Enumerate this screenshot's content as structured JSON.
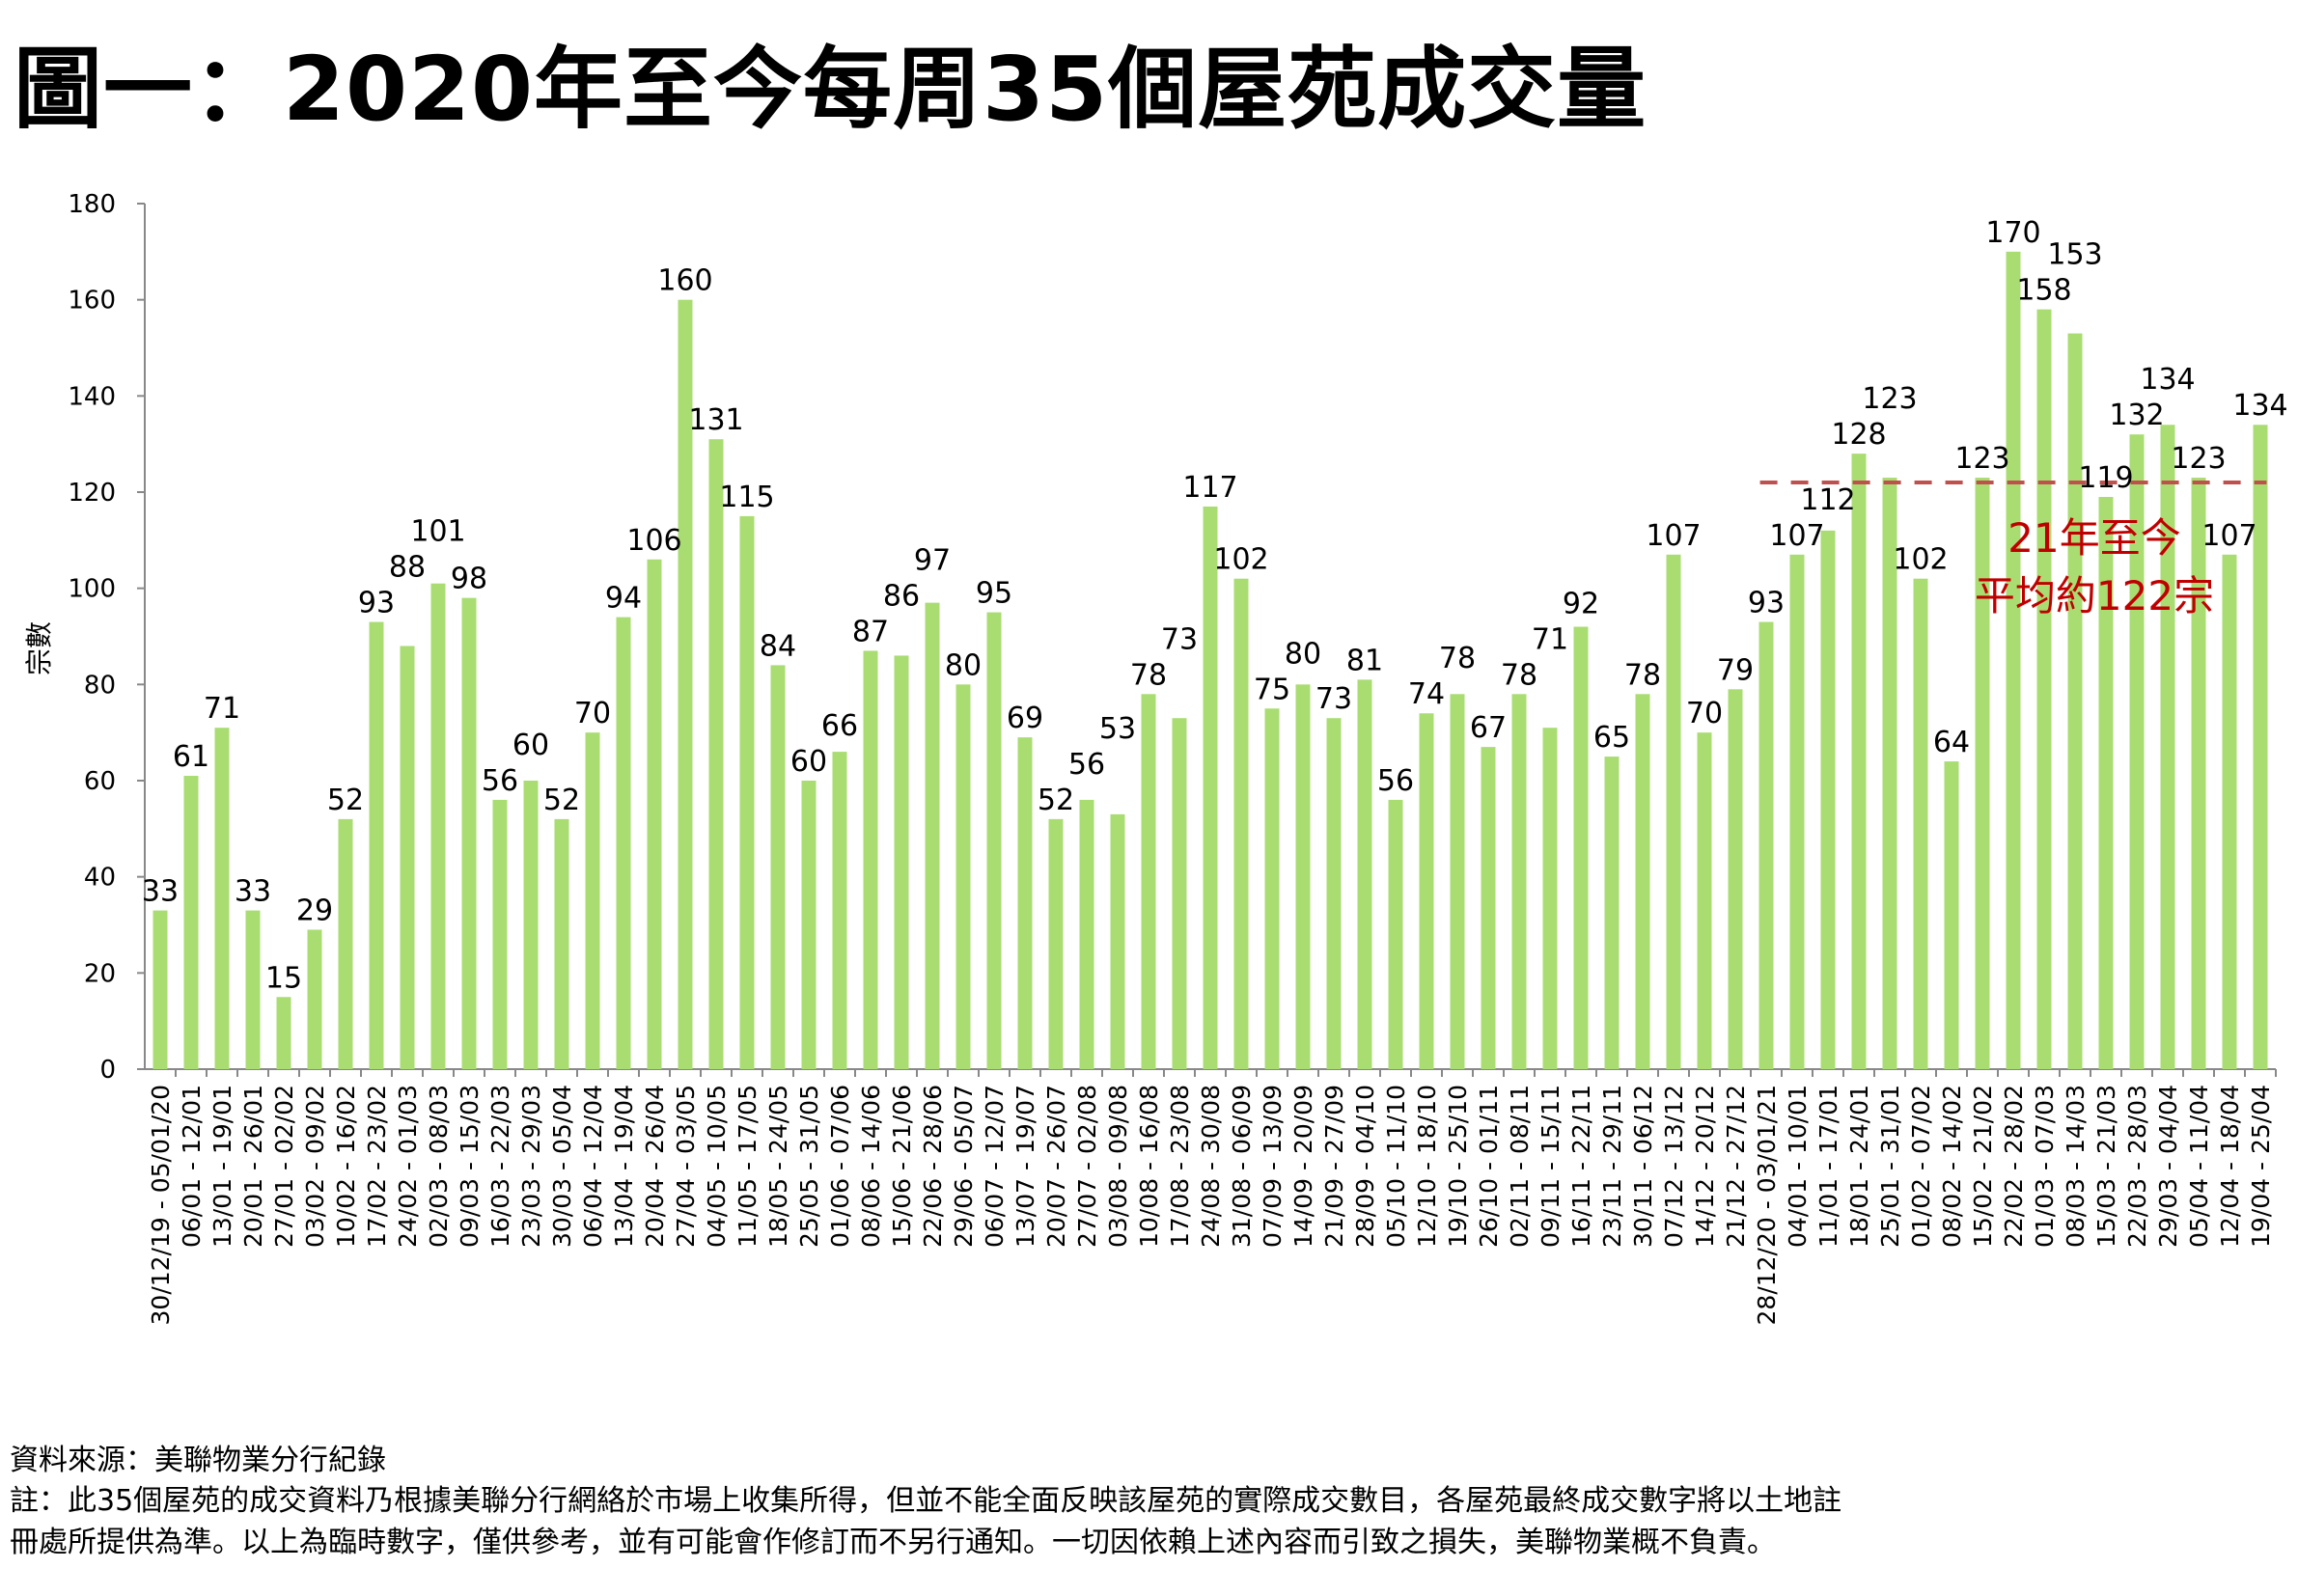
{
  "title": "圖一：2020年至今每周35個屋苑成交量",
  "chart_data": {
    "type": "bar",
    "title": "圖一：2020年至今每周35個屋苑成交量",
    "ylabel": "宗數",
    "xlabel": "",
    "ylim": [
      0,
      180
    ],
    "yticks": [
      0,
      20,
      40,
      60,
      80,
      100,
      120,
      140,
      160,
      180
    ],
    "grid": false,
    "bar_color": "#a9dd72",
    "categories": [
      "30/12/19 - 05/01/20",
      "06/01 - 12/01",
      "13/01 - 19/01",
      "20/01 - 26/01",
      "27/01 - 02/02",
      "03/02 - 09/02",
      "10/02 - 16/02",
      "17/02 - 23/02",
      "24/02 - 01/03",
      "02/03 - 08/03",
      "09/03 - 15/03",
      "16/03 - 22/03",
      "23/03 - 29/03",
      "30/03 - 05/04",
      "06/04 - 12/04",
      "13/04 - 19/04",
      "20/04 - 26/04",
      "27/04 - 03/05",
      "04/05 - 10/05",
      "11/05 - 17/05",
      "18/05 - 24/05",
      "25/05 - 31/05",
      "01/06 - 07/06",
      "08/06 - 14/06",
      "15/06 - 21/06",
      "22/06 - 28/06",
      "29/06 - 05/07",
      "06/07 - 12/07",
      "13/07 - 19/07",
      "20/07 - 26/07",
      "27/07 - 02/08",
      "03/08 - 09/08",
      "10/08 - 16/08",
      "17/08 - 23/08",
      "24/08 - 30/08",
      "31/08 - 06/09",
      "07/09 - 13/09",
      "14/09 - 20/09",
      "21/09 - 27/09",
      "28/09 - 04/10",
      "05/10 - 11/10",
      "12/10 - 18/10",
      "19/10 - 25/10",
      "26/10 - 01/11",
      "02/11 - 08/11",
      "09/11 - 15/11",
      "16/11 - 22/11",
      "23/11 - 29/11",
      "30/11 - 06/12",
      "07/12 - 13/12",
      "14/12 - 20/12",
      "21/12 - 27/12",
      "28/12/20 - 03/01/21",
      "04/01 - 10/01",
      "11/01 - 17/01",
      "18/01 - 24/01",
      "25/01 - 31/01",
      "01/02 - 07/02",
      "08/02 - 14/02",
      "15/02 - 21/02",
      "22/02 - 28/02",
      "01/03 - 07/03",
      "08/03 - 14/03",
      "15/03 - 21/03",
      "22/03 - 28/03",
      "29/03 - 04/04",
      "05/04 - 11/04",
      "12/04 - 18/04",
      "19/04 - 25/04"
    ],
    "values": [
      33,
      61,
      71,
      33,
      15,
      29,
      52,
      93,
      88,
      101,
      98,
      56,
      60,
      52,
      70,
      94,
      106,
      160,
      131,
      115,
      84,
      60,
      66,
      87,
      86,
      97,
      80,
      95,
      69,
      52,
      56,
      53,
      78,
      73,
      117,
      102,
      75,
      80,
      73,
      81,
      56,
      74,
      78,
      67,
      78,
      71,
      92,
      65,
      78,
      107,
      70,
      79,
      93,
      107,
      112,
      128,
      123,
      102,
      64,
      123,
      170,
      158,
      153,
      119,
      132,
      134,
      123,
      107,
      134
    ],
    "average_line": {
      "value": 122,
      "from_category": "28/12/20 - 03/01/21",
      "to_category": "19/04 - 25/04",
      "color": "#c0504d",
      "style": "dashed"
    },
    "annotation": {
      "line1": "21年至今",
      "line2": "平均約122宗",
      "color": "#c00000"
    }
  },
  "footer": {
    "source": "資料來源：美聯物業分行紀錄",
    "note_line1": "註：此35個屋苑的成交資料乃根據美聯分行網絡於市場上收集所得，但並不能全面反映該屋苑的實際成交數目，各屋苑最終成交數字將以土地註",
    "note_line2": "冊處所提供為準。以上為臨時數字，僅供參考，並有可能會作修訂而不另行通知。一切因依賴上述內容而引致之損失，美聯物業概不負責。"
  }
}
